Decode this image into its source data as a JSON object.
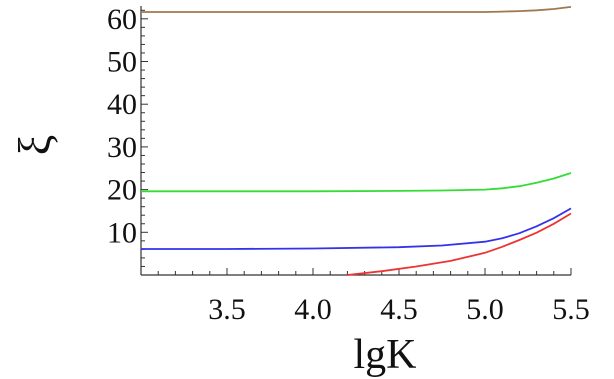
{
  "chart_data": {
    "type": "line",
    "title": "",
    "xlabel": "lgK",
    "ylabel": "ξ",
    "xlim": [
      3.0,
      5.5
    ],
    "ylim": [
      0,
      63
    ],
    "x_ticks": [
      3.5,
      4.0,
      4.5,
      5.0,
      5.5
    ],
    "x_tick_labels": [
      "3.5",
      "4.0",
      "4.5",
      "5.0",
      "5.5"
    ],
    "y_ticks": [
      10,
      20,
      30,
      40,
      50,
      60
    ],
    "y_tick_labels": [
      "10",
      "20",
      "30",
      "40",
      "50",
      "60"
    ],
    "grid": false,
    "series": [
      {
        "color": "#a07850",
        "x": [
          3.0,
          3.5,
          4.0,
          4.5,
          4.75,
          5.0,
          5.1,
          5.2,
          5.3,
          5.4,
          5.5
        ],
        "y": [
          61.6,
          61.6,
          61.6,
          61.6,
          61.6,
          61.6,
          61.7,
          61.8,
          62.0,
          62.3,
          62.8
        ]
      },
      {
        "color": "#33dd33",
        "x": [
          3.0,
          3.5,
          4.0,
          4.5,
          4.75,
          5.0,
          5.1,
          5.2,
          5.3,
          5.4,
          5.5
        ],
        "y": [
          19.6,
          19.6,
          19.6,
          19.7,
          19.8,
          20.0,
          20.3,
          20.8,
          21.6,
          22.6,
          23.9
        ]
      },
      {
        "color": "#3333ee",
        "x": [
          3.0,
          3.5,
          4.0,
          4.5,
          4.75,
          5.0,
          5.1,
          5.2,
          5.3,
          5.4,
          5.5
        ],
        "y": [
          6.1,
          6.1,
          6.2,
          6.5,
          6.9,
          7.8,
          8.6,
          9.8,
          11.4,
          13.3,
          15.6
        ]
      },
      {
        "color": "#ee3333",
        "x": [
          4.2,
          4.4,
          4.6,
          4.8,
          5.0,
          5.1,
          5.2,
          5.3,
          5.4,
          5.5
        ],
        "y": [
          0.0,
          0.9,
          2.0,
          3.3,
          5.2,
          6.6,
          8.2,
          9.9,
          12.0,
          14.4
        ]
      }
    ]
  }
}
